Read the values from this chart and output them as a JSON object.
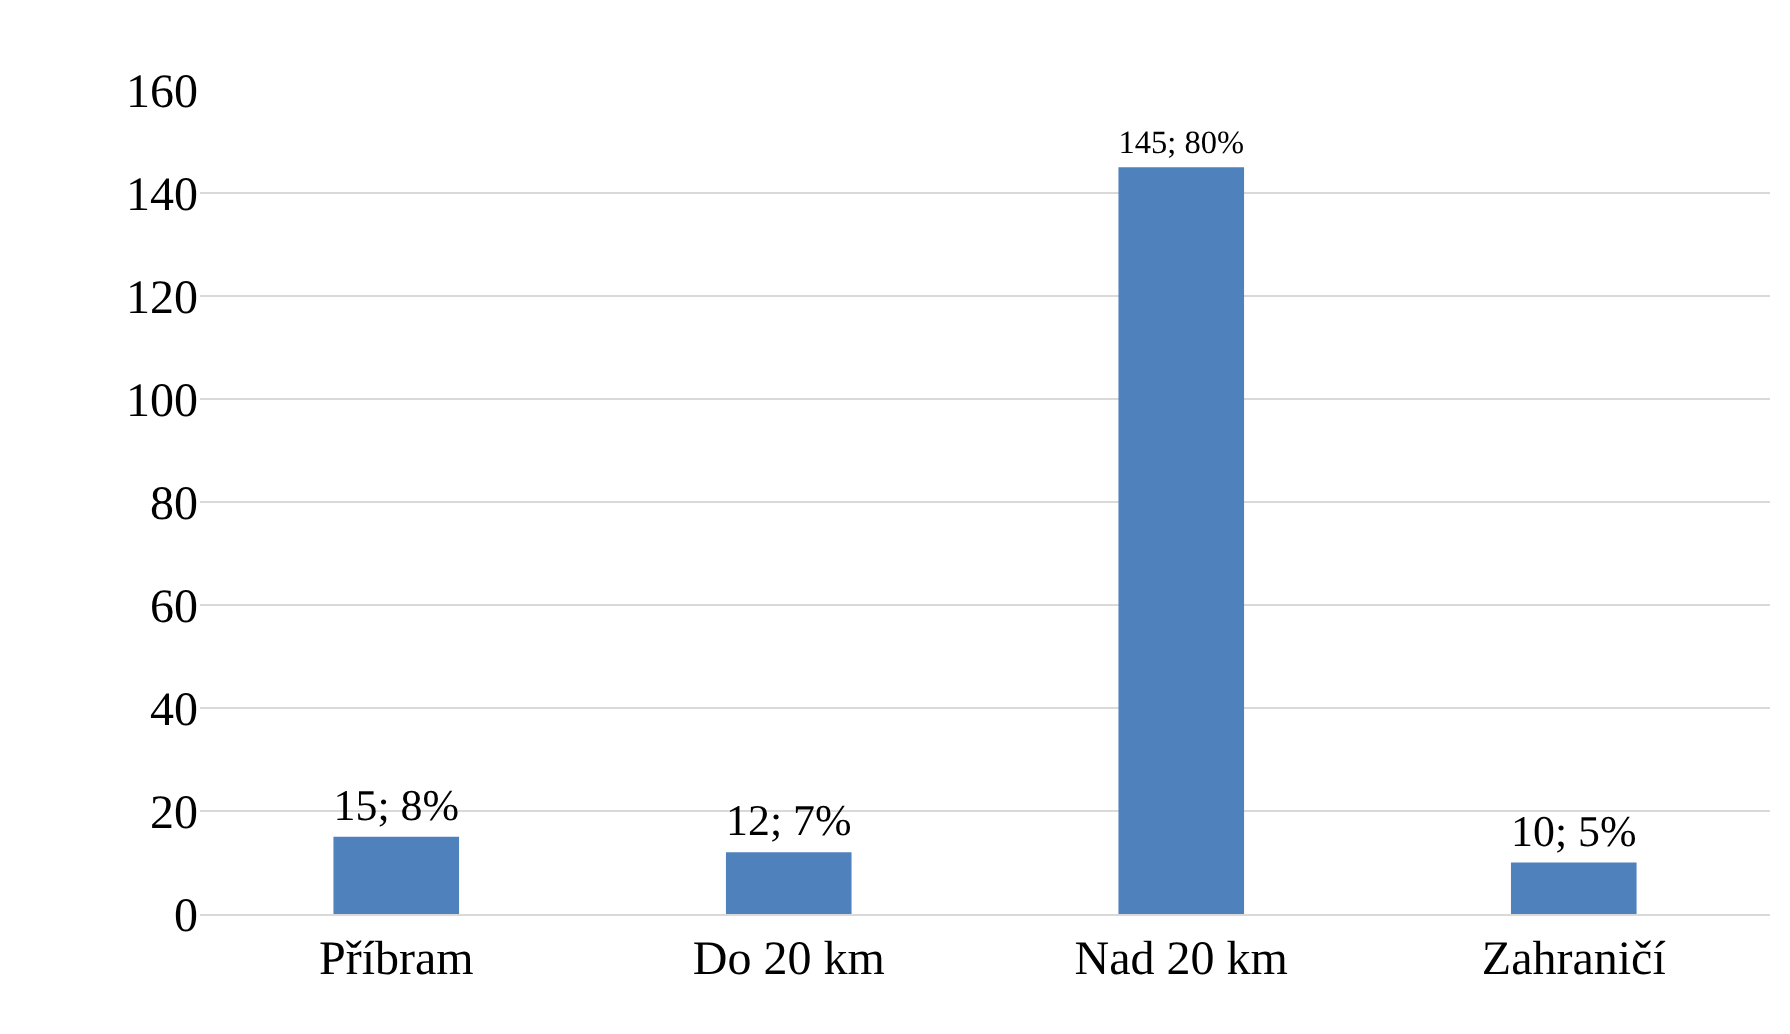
{
  "chart_data": {
    "type": "bar",
    "categories": [
      "Příbram",
      "Do 20 km",
      "Nad 20 km",
      "Zahraničí"
    ],
    "values": [
      15,
      12,
      145,
      10
    ],
    "value_labels": [
      "15; 8%",
      "12; 7%",
      "145; 80%",
      "10; 5%"
    ],
    "color": "#4f81bd",
    "ylim": [
      0,
      160
    ],
    "yticks": [
      0,
      20,
      40,
      60,
      80,
      100,
      120,
      140,
      160
    ],
    "grid": "y",
    "legend": false
  }
}
